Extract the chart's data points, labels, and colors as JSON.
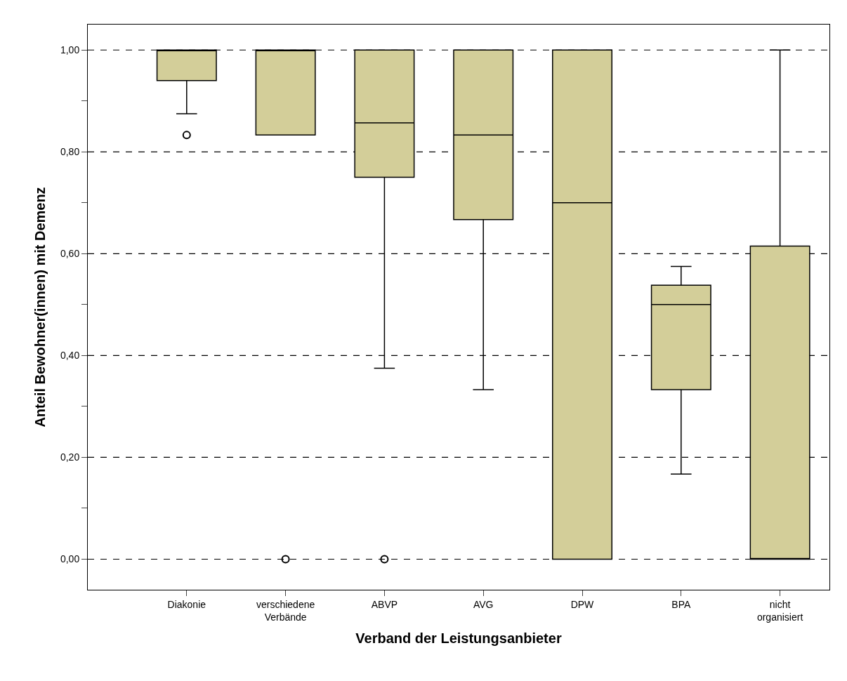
{
  "chart_data": {
    "type": "box",
    "xlabel": "Verband der Leistungsanbieter",
    "ylabel": "Anteil Bewohner(innen) mit Demenz",
    "categories": [
      "Diakonie",
      "verschiedene Verbände",
      "ABVP",
      "AVG",
      "DPW",
      "BPA",
      "nicht organisiert"
    ],
    "color": "#d3ce99",
    "boxes": [
      {
        "low": 0.875,
        "q1": 0.94,
        "median": 1.0,
        "q3": 1.0,
        "high": 1.0,
        "outliers": [
          0.833
        ]
      },
      {
        "low": 0.833,
        "q1": 0.833,
        "median": 1.0,
        "q3": 1.0,
        "high": 1.0,
        "outliers": [
          0.0
        ]
      },
      {
        "low": 0.375,
        "q1": 0.75,
        "median": 0.857,
        "q3": 1.0,
        "high": 1.0,
        "outliers": [
          0.0
        ]
      },
      {
        "low": 0.333,
        "q1": 0.667,
        "median": 0.833,
        "q3": 1.0,
        "high": 1.0
      },
      {
        "low": 0.0,
        "q1": 0.0,
        "median": 0.7,
        "q3": 1.0,
        "high": 1.0
      },
      {
        "low": 0.167,
        "q1": 0.333,
        "median": 0.5,
        "q3": 0.538,
        "high": 0.575
      },
      {
        "low": 0.0,
        "q1": 0.0,
        "median": 0.0,
        "q3": 0.615,
        "high": 1.0
      }
    ],
    "ylim": [
      -0.06,
      1.05
    ],
    "yticks": [
      {
        "value": 0,
        "label": "0,00"
      },
      {
        "value": 0.1,
        "label": null
      },
      {
        "value": 0.2,
        "label": "0,20"
      },
      {
        "value": 0.3,
        "label": null
      },
      {
        "value": 0.4,
        "label": "0,40"
      },
      {
        "value": 0.5,
        "label": null
      },
      {
        "value": 0.6,
        "label": "0,60"
      },
      {
        "value": 0.7,
        "label": null
      },
      {
        "value": 0.8,
        "label": "0,80"
      },
      {
        "value": 0.9,
        "label": null
      },
      {
        "value": 1.0,
        "label": "1,00"
      }
    ],
    "grid": "y",
    "line_style": "dashed",
    "marker": "circle"
  }
}
